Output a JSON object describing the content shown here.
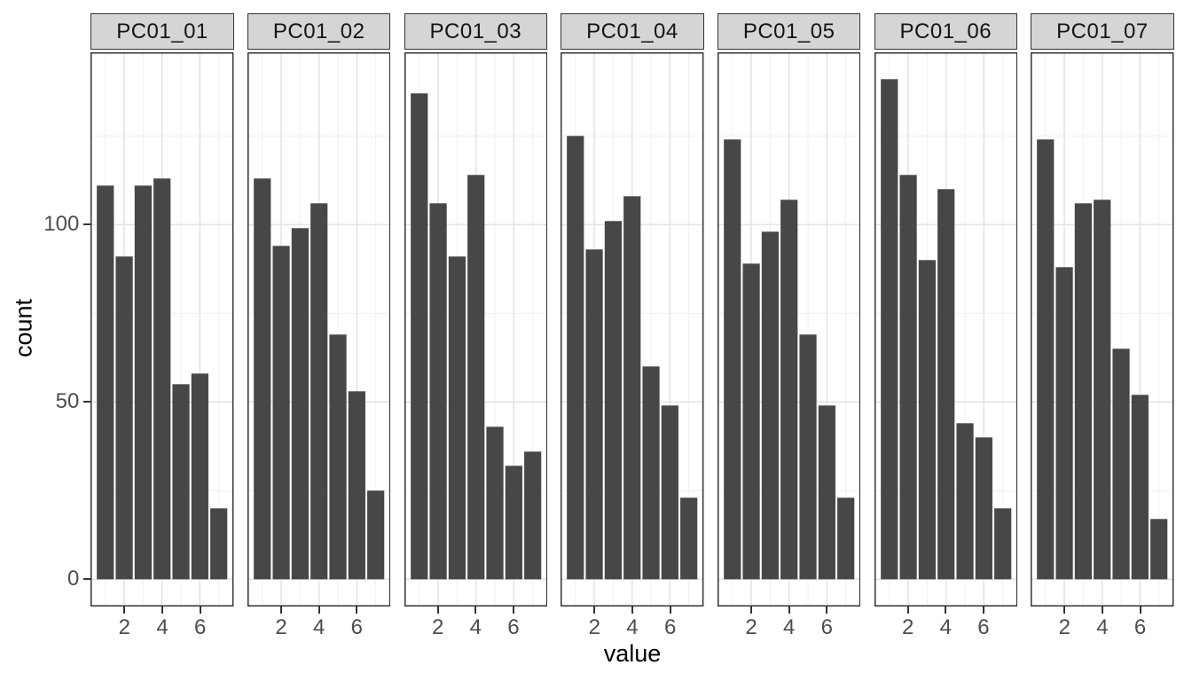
{
  "figure": {
    "y_axis_title": "count",
    "x_axis_title": "value"
  },
  "colors": {
    "bar_fill": "#474747",
    "strip_fill": "#d5d5d5",
    "panel_border": "#333333",
    "grid_major": "#e4e4e4",
    "grid_minor": "#f1f1f1",
    "tick_mark": "#333333",
    "axis_text": "#4d4d4d",
    "title_text": "#000000",
    "background": "#ffffff"
  },
  "chart_data": {
    "type": "bar",
    "title": "",
    "xlabel": "value",
    "ylabel": "count",
    "faceted": true,
    "facet_labels": [
      "PC01_01",
      "PC01_02",
      "PC01_03",
      "PC01_04",
      "PC01_05",
      "PC01_06",
      "PC01_07"
    ],
    "x": [
      1,
      2,
      3,
      4,
      5,
      6,
      7
    ],
    "series": [
      {
        "name": "PC01_01",
        "values": [
          111,
          91,
          111,
          113,
          55,
          58,
          20
        ]
      },
      {
        "name": "PC01_02",
        "values": [
          113,
          94,
          99,
          106,
          69,
          53,
          25
        ]
      },
      {
        "name": "PC01_03",
        "values": [
          137,
          106,
          91,
          114,
          43,
          32,
          36
        ]
      },
      {
        "name": "PC01_04",
        "values": [
          125,
          93,
          101,
          108,
          60,
          49,
          23
        ]
      },
      {
        "name": "PC01_05",
        "values": [
          124,
          89,
          98,
          107,
          69,
          49,
          23
        ]
      },
      {
        "name": "PC01_06",
        "values": [
          141,
          114,
          90,
          110,
          44,
          40,
          20
        ]
      },
      {
        "name": "PC01_07",
        "values": [
          124,
          88,
          106,
          107,
          65,
          52,
          17
        ]
      }
    ],
    "x_ticks": [
      2,
      4,
      6
    ],
    "x_minor_breaks": [
      1,
      3,
      5,
      7
    ],
    "y_ticks": [
      0,
      50,
      100
    ],
    "y_minor_breaks": [
      25,
      75,
      125
    ],
    "ylim": [
      -7,
      149
    ],
    "bar_width_ratio": 0.9,
    "legend": "none",
    "grid": true
  }
}
